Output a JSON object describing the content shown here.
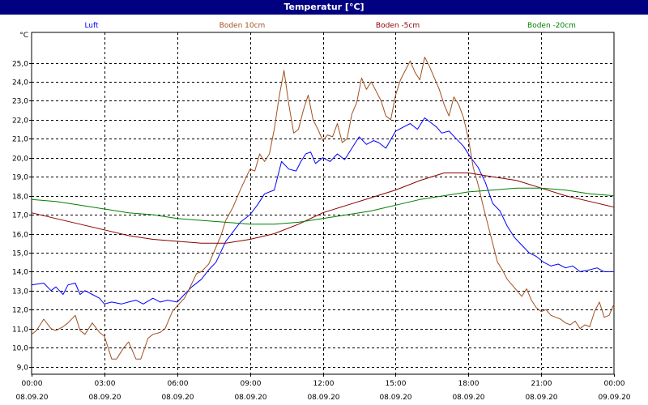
{
  "window": {
    "title": "Temperatur [°C]"
  },
  "chart_data": {
    "type": "line",
    "ylabel": "°C",
    "ylim": [
      8.6,
      26.6
    ],
    "yticks": [
      9.0,
      10.0,
      11.0,
      12.0,
      13.0,
      14.0,
      15.0,
      16.0,
      17.0,
      18.0,
      19.0,
      20.0,
      21.0,
      22.0,
      23.0,
      24.0,
      25.0
    ],
    "ytick_labels": [
      "9,0",
      "10,0",
      "11,0",
      "12,0",
      "13,0",
      "14,0",
      "15,0",
      "16,0",
      "17,0",
      "18,0",
      "19,0",
      "20,0",
      "21,0",
      "22,0",
      "23,0",
      "24,0",
      "25,0"
    ],
    "xlim": [
      0,
      24
    ],
    "xticks": [
      0,
      3,
      6,
      9,
      12,
      15,
      18,
      21,
      24
    ],
    "xtick_labels": [
      [
        "00:00",
        "08.09.20"
      ],
      [
        "03:00",
        "08.09.20"
      ],
      [
        "06:00",
        "08.09.20"
      ],
      [
        "09:00",
        "08.09.20"
      ],
      [
        "12:00",
        "08.09.20"
      ],
      [
        "15:00",
        "08.09.20"
      ],
      [
        "18:00",
        "08.09.20"
      ],
      [
        "21:00",
        "08.09.20"
      ],
      [
        "00:00",
        "09.09.20"
      ]
    ],
    "grid": true,
    "legend_position": "top",
    "series": [
      {
        "name": "Luft",
        "color": "#0000ff",
        "x": [
          0,
          0.5,
          0.8,
          1.0,
          1.3,
          1.5,
          1.8,
          2.0,
          2.2,
          2.5,
          2.8,
          3.0,
          3.3,
          3.7,
          4.0,
          4.3,
          4.6,
          5.0,
          5.3,
          5.6,
          6.0,
          6.3,
          6.6,
          7.0,
          7.3,
          7.6,
          8.0,
          8.3,
          8.6,
          9.0,
          9.3,
          9.6,
          10.0,
          10.3,
          10.6,
          10.9,
          11.1,
          11.3,
          11.5,
          11.7,
          12.0,
          12.3,
          12.6,
          12.9,
          13.2,
          13.5,
          13.8,
          14.1,
          14.3,
          14.6,
          15.0,
          15.3,
          15.6,
          15.9,
          16.2,
          16.5,
          16.7,
          16.9,
          17.2,
          17.5,
          17.8,
          18.1,
          18.4,
          18.7,
          19.0,
          19.3,
          19.6,
          19.9,
          20.2,
          20.5,
          20.8,
          21.1,
          21.4,
          21.7,
          22.0,
          22.3,
          22.6,
          23.0,
          23.3,
          23.6,
          24.0
        ],
        "y": [
          13.3,
          13.4,
          13.0,
          13.2,
          12.8,
          13.3,
          13.4,
          12.8,
          13.0,
          12.8,
          12.6,
          12.3,
          12.4,
          12.3,
          12.4,
          12.5,
          12.3,
          12.6,
          12.4,
          12.5,
          12.4,
          12.8,
          13.2,
          13.6,
          14.1,
          14.5,
          15.6,
          16.1,
          16.6,
          17.0,
          17.5,
          18.1,
          18.3,
          19.8,
          19.4,
          19.3,
          19.8,
          20.2,
          20.3,
          19.7,
          20.0,
          19.8,
          20.2,
          19.9,
          20.5,
          21.1,
          20.7,
          20.9,
          20.8,
          20.5,
          21.4,
          21.6,
          21.8,
          21.5,
          22.1,
          21.8,
          21.6,
          21.3,
          21.4,
          21.0,
          20.6,
          20.0,
          19.5,
          18.7,
          17.6,
          17.2,
          16.4,
          15.8,
          15.4,
          15.0,
          14.8,
          14.5,
          14.3,
          14.4,
          14.2,
          14.3,
          14.0,
          14.1,
          14.2,
          14.0,
          14.0
        ]
      },
      {
        "name": "Boden 10cm",
        "color": "#a0501e",
        "x": [
          0,
          0.2,
          0.5,
          0.8,
          1.0,
          1.3,
          1.5,
          1.8,
          2.0,
          2.2,
          2.5,
          2.8,
          3.0,
          3.3,
          3.5,
          3.8,
          4.0,
          4.3,
          4.5,
          4.8,
          5.0,
          5.3,
          5.5,
          5.8,
          6.0,
          6.3,
          6.5,
          6.8,
          7.0,
          7.3,
          7.5,
          7.8,
          8.0,
          8.3,
          8.6,
          9.0,
          9.2,
          9.4,
          9.6,
          9.8,
          10.0,
          10.2,
          10.4,
          10.6,
          10.8,
          11.0,
          11.2,
          11.4,
          11.6,
          11.8,
          12.0,
          12.2,
          12.4,
          12.6,
          12.8,
          13.0,
          13.2,
          13.4,
          13.6,
          13.8,
          14.0,
          14.2,
          14.4,
          14.6,
          14.8,
          15.0,
          15.2,
          15.4,
          15.6,
          15.8,
          16.0,
          16.2,
          16.4,
          16.6,
          16.8,
          17.0,
          17.2,
          17.4,
          17.6,
          17.8,
          18.0,
          18.2,
          18.4,
          18.6,
          18.8,
          19.0,
          19.2,
          19.4,
          19.6,
          19.8,
          20.0,
          20.2,
          20.4,
          20.6,
          20.8,
          21.0,
          21.2,
          21.4,
          21.6,
          21.8,
          22.0,
          22.2,
          22.4,
          22.6,
          22.8,
          23.0,
          23.2,
          23.4,
          23.6,
          23.8,
          24.0
        ],
        "y": [
          10.7,
          10.9,
          11.5,
          11.0,
          10.9,
          11.1,
          11.3,
          11.7,
          10.9,
          10.7,
          11.3,
          10.8,
          10.6,
          9.4,
          9.4,
          10.0,
          10.3,
          9.4,
          9.4,
          10.5,
          10.7,
          10.8,
          11.0,
          11.9,
          12.2,
          12.6,
          13.1,
          13.9,
          14.0,
          14.4,
          15.0,
          15.9,
          16.7,
          17.4,
          18.3,
          19.4,
          19.3,
          20.2,
          19.8,
          20.2,
          21.5,
          23.2,
          24.6,
          22.8,
          21.3,
          21.5,
          22.5,
          23.3,
          22.0,
          21.5,
          20.9,
          21.2,
          21.1,
          21.8,
          20.8,
          21.0,
          22.3,
          22.9,
          24.2,
          23.6,
          24.0,
          23.5,
          23.0,
          22.2,
          22.0,
          23.3,
          24.1,
          24.6,
          25.1,
          24.5,
          24.1,
          25.3,
          24.8,
          24.2,
          23.6,
          22.8,
          22.2,
          23.2,
          22.8,
          22.1,
          21.0,
          19.5,
          18.6,
          17.5,
          16.5,
          15.5,
          14.5,
          14.1,
          13.6,
          13.3,
          13.0,
          12.7,
          13.1,
          12.5,
          12.1,
          11.9,
          12.0,
          11.7,
          11.6,
          11.5,
          11.3,
          11.2,
          11.4,
          11.0,
          11.2,
          11.1,
          11.9,
          12.4,
          11.6,
          11.7,
          12.3
        ]
      },
      {
        "name": "Boden -5cm",
        "color": "#8b0000",
        "x": [
          0,
          1,
          2,
          3,
          4,
          5,
          6,
          7,
          8,
          9,
          10,
          11,
          12,
          13,
          14,
          15,
          16,
          17,
          18,
          19,
          20,
          21,
          22,
          23,
          24
        ],
        "y": [
          17.1,
          16.8,
          16.5,
          16.2,
          15.9,
          15.7,
          15.6,
          15.5,
          15.5,
          15.7,
          16.0,
          16.5,
          17.1,
          17.5,
          17.9,
          18.3,
          18.8,
          19.2,
          19.2,
          19.0,
          18.8,
          18.4,
          18.0,
          17.7,
          17.4
        ]
      },
      {
        "name": "Boden -20cm",
        "color": "#008000",
        "x": [
          0,
          1,
          2,
          3,
          4,
          5,
          6,
          7,
          8,
          9,
          10,
          11,
          12,
          13,
          14,
          15,
          16,
          17,
          18,
          19,
          20,
          21,
          22,
          23,
          24
        ],
        "y": [
          17.8,
          17.7,
          17.5,
          17.3,
          17.1,
          17.0,
          16.8,
          16.7,
          16.6,
          16.5,
          16.5,
          16.6,
          16.8,
          17.0,
          17.2,
          17.5,
          17.8,
          18.0,
          18.2,
          18.3,
          18.4,
          18.4,
          18.3,
          18.1,
          18.0
        ]
      }
    ]
  }
}
